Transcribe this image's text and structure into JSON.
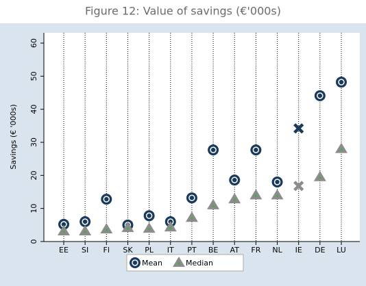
{
  "chart_data": {
    "type": "scatter",
    "title": "Figure 12: Value of savings (€'000s)",
    "y_label": "Savings (€ '000s)",
    "categories": [
      "EE",
      "SI",
      "FI",
      "SK",
      "PL",
      "IT",
      "PT",
      "BE",
      "AT",
      "FR",
      "NL",
      "IE",
      "DE",
      "LU"
    ],
    "series": [
      {
        "name": "Mean",
        "color": "#1a3a5c",
        "markers": [
          "circle",
          "circle",
          "circle",
          "circle",
          "circle",
          "circle",
          "circle",
          "circle",
          "circle",
          "circle",
          "circle",
          "x",
          "circle",
          "circle"
        ],
        "values": [
          5.2,
          6,
          12.8,
          5,
          7.8,
          6,
          13.2,
          27.7,
          18.6,
          27.7,
          18,
          34.2,
          44.1,
          48.2
        ]
      },
      {
        "name": "Median",
        "color": "#8c8c8c",
        "markers": [
          "triangle",
          "triangle",
          "triangle",
          "triangle",
          "triangle",
          "triangle",
          "triangle",
          "triangle",
          "triangle",
          "triangle",
          "triangle",
          "x",
          "triangle",
          "triangle"
        ],
        "values": [
          3.1,
          3.1,
          3.7,
          4.1,
          3.9,
          4.3,
          7.2,
          11,
          12.8,
          14,
          14,
          16.8,
          19.5,
          28
        ]
      }
    ],
    "ylim": [
      0,
      60
    ],
    "yticks": [
      0,
      10,
      20,
      30,
      40,
      50,
      60
    ],
    "legend": "bottom"
  }
}
